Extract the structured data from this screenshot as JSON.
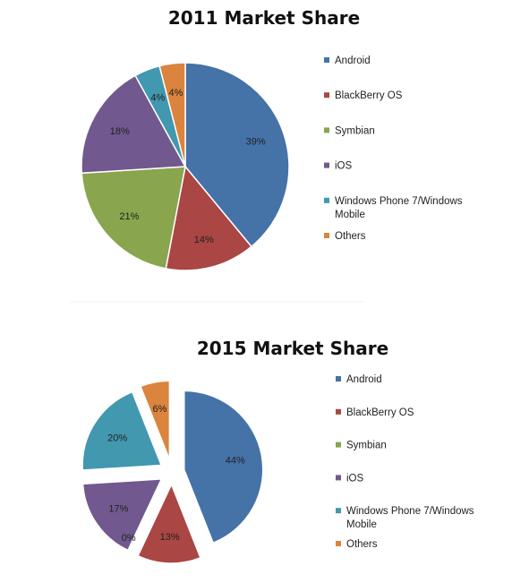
{
  "chart_data": [
    {
      "type": "pie",
      "title": "2011 Market Share",
      "exploded": false,
      "categories": [
        "Android",
        "BlackBerry OS",
        "Symbian",
        "iOS",
        "Windows Phone 7/Windows Mobile",
        "Others"
      ],
      "values": [
        39,
        14,
        21,
        18,
        4,
        4
      ],
      "labels": [
        "39%",
        "14%",
        "21%",
        "18%",
        "4%",
        "4%"
      ],
      "colors": [
        "#4572A7",
        "#AA4643",
        "#89A54E",
        "#71588F",
        "#4198AF",
        "#DB843D"
      ],
      "legend_position": "right"
    },
    {
      "type": "pie",
      "title": "2015 Market Share",
      "exploded": true,
      "categories": [
        "Android",
        "BlackBerry OS",
        "Symbian",
        "iOS",
        "Windows Phone 7/Windows Mobile",
        "Others"
      ],
      "values": [
        44,
        13,
        0,
        17,
        20,
        6
      ],
      "labels": [
        "44%",
        "13%",
        "0%",
        "17%",
        "20%",
        "6%"
      ],
      "colors": [
        "#4572A7",
        "#AA4643",
        "#89A54E",
        "#71588F",
        "#4198AF",
        "#DB843D"
      ],
      "legend_position": "right"
    }
  ]
}
